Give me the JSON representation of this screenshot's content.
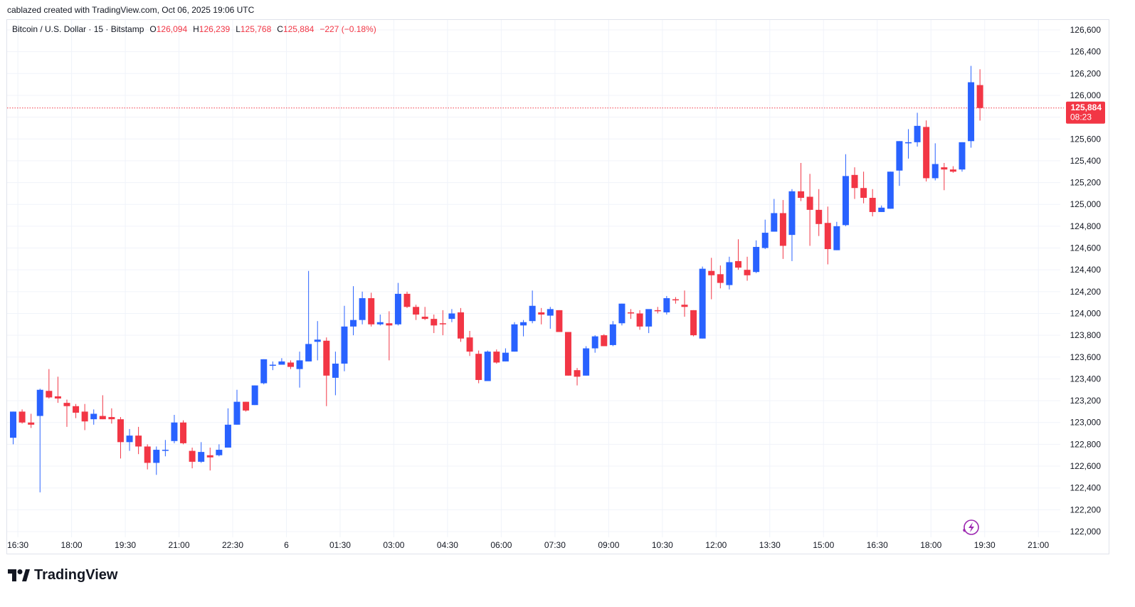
{
  "credit": "cablazed created with TradingView.com, Oct 06, 2025 19:06 UTC",
  "legend": {
    "symbol": "Bitcoin / U.S. Dollar · 15 · Bitstamp",
    "open_label": "O",
    "open": "126,094",
    "high_label": "H",
    "high": "126,239",
    "low_label": "L",
    "low": "125,768",
    "close_label": "C",
    "close": "125,884",
    "change": "−227 (−0.18%)"
  },
  "price_tag": {
    "price": "125,884",
    "countdown": "08:23"
  },
  "brand": "TradingView",
  "colors": {
    "up": "#2962ff",
    "down": "#f23645",
    "grid": "#f0f3fa",
    "text": "#131722"
  },
  "chart_data": {
    "type": "candlestick",
    "interval": "15",
    "ylim": [
      122000,
      126600
    ],
    "y_ticks": [
      "122,000",
      "122,200",
      "122,400",
      "122,600",
      "122,800",
      "123,000",
      "123,200",
      "123,400",
      "123,600",
      "123,800",
      "124,000",
      "124,200",
      "124,400",
      "124,600",
      "124,800",
      "125,000",
      "125,200",
      "125,400",
      "125,600",
      "125,800",
      "126,000",
      "126,200",
      "126,400",
      "126,600"
    ],
    "x_ticks": [
      "16:30",
      "18:00",
      "19:30",
      "21:00",
      "22:30",
      "6",
      "01:30",
      "03:00",
      "04:30",
      "06:00",
      "07:30",
      "09:00",
      "10:30",
      "12:00",
      "13:30",
      "15:00",
      "16:30",
      "18:00",
      "19:30",
      "21:00"
    ],
    "x_tick_index": [
      1,
      7,
      13,
      19,
      25,
      31,
      37,
      43,
      49,
      55,
      61,
      67,
      73,
      79,
      85,
      91,
      97,
      103,
      109,
      115
    ],
    "last_price": 125884,
    "candles": [
      [
        122860,
        123100,
        122800,
        123100
      ],
      [
        123100,
        123120,
        122990,
        123000
      ],
      [
        123000,
        123080,
        122950,
        122980
      ],
      [
        123060,
        123310,
        122360,
        123300
      ],
      [
        123290,
        123490,
        123220,
        123230
      ],
      [
        123240,
        123420,
        123180,
        123220
      ],
      [
        123180,
        123210,
        122960,
        123150
      ],
      [
        123150,
        123170,
        123040,
        123090
      ],
      [
        123100,
        123170,
        122930,
        123010
      ],
      [
        123030,
        123120,
        122980,
        123080
      ],
      [
        123060,
        123250,
        123030,
        123030
      ],
      [
        123050,
        123130,
        122990,
        123030
      ],
      [
        123030,
        123050,
        122670,
        122820
      ],
      [
        122820,
        122940,
        122740,
        122880
      ],
      [
        122880,
        122960,
        122710,
        122780
      ],
      [
        122780,
        122800,
        122570,
        122630
      ],
      [
        122630,
        122780,
        122520,
        122750
      ],
      [
        122750,
        122840,
        122690,
        122750
      ],
      [
        122830,
        123070,
        122810,
        123000
      ],
      [
        123000,
        123020,
        122800,
        122810
      ],
      [
        122740,
        122770,
        122580,
        122640
      ],
      [
        122640,
        122820,
        122630,
        122730
      ],
      [
        122700,
        122770,
        122560,
        122680
      ],
      [
        122700,
        122800,
        122690,
        122750
      ],
      [
        122770,
        123130,
        122770,
        122980
      ],
      [
        122980,
        123300,
        122980,
        123190
      ],
      [
        123190,
        123190,
        123100,
        123110
      ],
      [
        123160,
        123340,
        123160,
        123340
      ],
      [
        123360,
        123580,
        123350,
        123580
      ],
      [
        123530,
        123560,
        123480,
        123530
      ],
      [
        123530,
        123590,
        123530,
        123560
      ],
      [
        123550,
        123570,
        123490,
        123510
      ],
      [
        123490,
        123650,
        123320,
        123570
      ],
      [
        123560,
        124390,
        123560,
        123720
      ],
      [
        123740,
        123930,
        123570,
        123760
      ],
      [
        123750,
        123780,
        123150,
        123430
      ],
      [
        123410,
        123650,
        123250,
        123540
      ],
      [
        123540,
        124070,
        123470,
        123880
      ],
      [
        123880,
        124250,
        123800,
        123940
      ],
      [
        123940,
        124200,
        123900,
        124140
      ],
      [
        124140,
        124190,
        123880,
        123900
      ],
      [
        123900,
        123990,
        123890,
        123920
      ],
      [
        123910,
        124020,
        123570,
        123890
      ],
      [
        123900,
        124280,
        123890,
        124180
      ],
      [
        124180,
        124200,
        124050,
        124060
      ],
      [
        124060,
        124080,
        123940,
        123990
      ],
      [
        123970,
        124060,
        123940,
        123950
      ],
      [
        123950,
        123990,
        123820,
        123890
      ],
      [
        123910,
        124030,
        123800,
        123900
      ],
      [
        123950,
        124040,
        123920,
        124000
      ],
      [
        124010,
        124050,
        123740,
        123770
      ],
      [
        123780,
        123840,
        123610,
        123650
      ],
      [
        123630,
        123660,
        123360,
        123390
      ],
      [
        123380,
        123660,
        123380,
        123650
      ],
      [
        123650,
        123670,
        123540,
        123550
      ],
      [
        123560,
        123680,
        123560,
        123640
      ],
      [
        123650,
        123920,
        123650,
        123900
      ],
      [
        123890,
        123940,
        123790,
        123920
      ],
      [
        123930,
        124210,
        123910,
        124070
      ],
      [
        124010,
        124050,
        123900,
        123990
      ],
      [
        123980,
        124060,
        123860,
        124040
      ],
      [
        124030,
        124030,
        123850,
        123830
      ],
      [
        123830,
        123830,
        123430,
        123430
      ],
      [
        123480,
        123500,
        123340,
        123420
      ],
      [
        123430,
        123700,
        123430,
        123680
      ],
      [
        123680,
        123800,
        123640,
        123790
      ],
      [
        123800,
        123810,
        123700,
        123700
      ],
      [
        123710,
        123930,
        123700,
        123900
      ],
      [
        123910,
        124090,
        123890,
        124090
      ],
      [
        124010,
        124040,
        123950,
        124000
      ],
      [
        124000,
        124030,
        123850,
        123880
      ],
      [
        123880,
        124010,
        123820,
        124040
      ],
      [
        124030,
        124060,
        124000,
        124020
      ],
      [
        124010,
        124160,
        123990,
        124140
      ],
      [
        124130,
        124150,
        124090,
        124120
      ],
      [
        124080,
        124210,
        123970,
        124060
      ],
      [
        124030,
        124030,
        123790,
        123800
      ],
      [
        123770,
        124430,
        123770,
        124410
      ],
      [
        124390,
        124510,
        124130,
        124350
      ],
      [
        124360,
        124440,
        124230,
        124280
      ],
      [
        124260,
        124520,
        124220,
        124470
      ],
      [
        124480,
        124680,
        124400,
        124420
      ],
      [
        124400,
        124520,
        124300,
        124350
      ],
      [
        124380,
        124670,
        124370,
        124610
      ],
      [
        124600,
        124860,
        124590,
        124740
      ],
      [
        124750,
        125050,
        124750,
        124920
      ],
      [
        124920,
        125040,
        124500,
        124620
      ],
      [
        124720,
        125140,
        124480,
        125120
      ],
      [
        125120,
        125380,
        125030,
        125060
      ],
      [
        125070,
        125280,
        124620,
        124950
      ],
      [
        124950,
        125140,
        124710,
        124820
      ],
      [
        124830,
        124980,
        124450,
        124590
      ],
      [
        124580,
        124840,
        124580,
        124800
      ],
      [
        124810,
        125460,
        124800,
        125260
      ],
      [
        125270,
        125340,
        125050,
        125150
      ],
      [
        125150,
        125300,
        125010,
        125060
      ],
      [
        125060,
        125140,
        124890,
        124930
      ],
      [
        124930,
        124990,
        124930,
        124970
      ],
      [
        124960,
        125300,
        124960,
        125300
      ],
      [
        125310,
        125580,
        125170,
        125580
      ],
      [
        125560,
        125690,
        125420,
        125570
      ],
      [
        125570,
        125840,
        125530,
        125720
      ],
      [
        125710,
        125770,
        125210,
        125240
      ],
      [
        125240,
        125560,
        125220,
        125370
      ],
      [
        125340,
        125380,
        125130,
        125320
      ],
      [
        125320,
        125350,
        125290,
        125300
      ],
      [
        125320,
        125570,
        125300,
        125570
      ],
      [
        125580,
        126270,
        125520,
        126120
      ],
      [
        126094,
        126239,
        125768,
        125884
      ]
    ]
  }
}
